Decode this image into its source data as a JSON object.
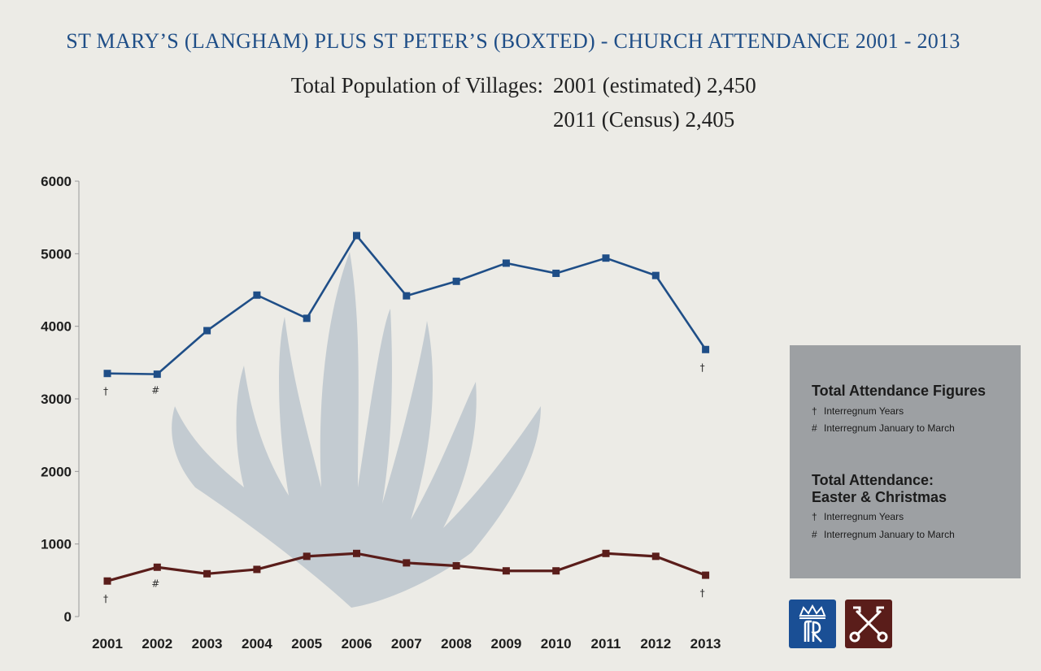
{
  "header": {
    "title": "ST MARY’S (LANGHAM) PLUS ST PETER’S (BOXTED) - CHURCH ATTENDANCE 2001 - 2013",
    "population_label": "Total Population of Villages:",
    "population_2001": "2001 (estimated) 2,450",
    "population_2011": "2011 (Census) 2,405"
  },
  "chart_data": {
    "type": "line",
    "title": "ST MARY’S (LANGHAM) PLUS ST PETER’S (BOXTED) - CHURCH ATTENDANCE 2001 - 2013",
    "categories": [
      "2001",
      "2002",
      "2003",
      "2004",
      "2005",
      "2006",
      "2007",
      "2008",
      "2009",
      "2010",
      "2011",
      "2012",
      "2013"
    ],
    "ylim": [
      0,
      6000
    ],
    "yticks": [
      "0",
      "1000",
      "2000",
      "3000",
      "4000",
      "5000",
      "6000"
    ],
    "xlabel": "",
    "ylabel": "",
    "grid": false,
    "legend_position": "right",
    "series": [
      {
        "name": "Total Attendance Figures",
        "color": "#1f4e87",
        "values": [
          3350,
          3340,
          3940,
          4430,
          4110,
          5250,
          4420,
          4620,
          4870,
          4730,
          4940,
          4700,
          3680
        ],
        "markers": [
          "†",
          "#",
          "",
          "",
          "",
          "",
          "",
          "",
          "",
          "",
          "",
          "",
          "†"
        ]
      },
      {
        "name": "Total Attendance: Easter & Christmas",
        "color": "#5a1d1a",
        "values": [
          490,
          680,
          590,
          650,
          830,
          870,
          740,
          700,
          630,
          630,
          870,
          830,
          570
        ],
        "markers": [
          "†",
          "#",
          "",
          "",
          "",
          "",
          "",
          "",
          "",
          "",
          "",
          "",
          "†"
        ]
      }
    ]
  },
  "legend": {
    "block1_title": "Total Attendance Figures",
    "block1_note1_symbol": "†",
    "block1_note1": "Interregnum Years",
    "block1_note2_symbol": "#",
    "block1_note2": "Interregnum January to March",
    "block2_title_line1": "Total Attendance:",
    "block2_title_line2": "Easter & Christmas",
    "block2_note1_symbol": "†",
    "block2_note1": "Interregnum Years",
    "block2_note2_symbol": "#",
    "block2_note2": "Interregnum January to March"
  },
  "logos": {
    "left_icon": "crown-monogram-icon",
    "right_icon": "crossed-keys-icon",
    "left_color": "#1a4f95",
    "right_color": "#5a1d1a"
  }
}
